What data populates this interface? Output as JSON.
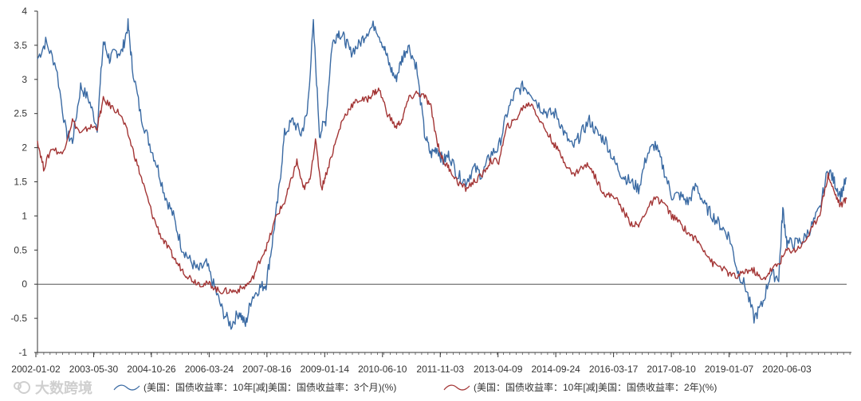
{
  "chart_data": {
    "type": "line",
    "title": "",
    "xlabel": "",
    "ylabel": "",
    "ylim": [
      -1,
      4
    ],
    "yticks": [
      "4",
      "3.5",
      "3",
      "2.5",
      "2",
      "1.5",
      "1",
      "0.5",
      "0",
      "-0.5",
      "-1"
    ],
    "xticks": [
      "2002-01-02",
      "2003-05-30",
      "2004-10-26",
      "2006-03-24",
      "2007-08-16",
      "2009-01-14",
      "2010-06-10",
      "2011-11-03",
      "2013-04-09",
      "2014-09-24",
      "2016-03-17",
      "2017-08-10",
      "2019-01-07",
      "2020-06-03"
    ],
    "grid": false,
    "zero_line": true,
    "x_range_years": [
      2002.0,
      2021.65
    ],
    "legend_position": "bottom",
    "series": [
      {
        "name": "(美国：国债收益率：10年[减]美国：国债收益率：3个月)(%)",
        "color": "#3a6aa3",
        "x": [
          2002.0,
          2002.2,
          2002.45,
          2002.7,
          2002.85,
          2003.05,
          2003.25,
          2003.45,
          2003.6,
          2003.75,
          2003.9,
          2004.05,
          2004.2,
          2004.3,
          2004.5,
          2004.7,
          2004.9,
          2005.1,
          2005.3,
          2005.5,
          2005.7,
          2005.9,
          2006.1,
          2006.3,
          2006.5,
          2006.7,
          2006.9,
          2007.05,
          2007.2,
          2007.4,
          2007.55,
          2007.7,
          2007.85,
          2008.0,
          2008.2,
          2008.4,
          2008.55,
          2008.7,
          2008.85,
          2009.0,
          2009.15,
          2009.3,
          2009.45,
          2009.6,
          2009.8,
          2010.0,
          2010.2,
          2010.4,
          2010.55,
          2010.7,
          2010.85,
          2011.0,
          2011.2,
          2011.4,
          2011.55,
          2011.7,
          2011.85,
          2012.0,
          2012.2,
          2012.4,
          2012.6,
          2012.8,
          2013.0,
          2013.2,
          2013.4,
          2013.6,
          2013.8,
          2014.0,
          2014.2,
          2014.4,
          2014.6,
          2014.8,
          2015.0,
          2015.2,
          2015.4,
          2015.6,
          2015.8,
          2016.0,
          2016.2,
          2016.4,
          2016.6,
          2016.8,
          2017.0,
          2017.2,
          2017.4,
          2017.6,
          2017.8,
          2018.0,
          2018.2,
          2018.4,
          2018.6,
          2018.8,
          2019.0,
          2019.2,
          2019.4,
          2019.6,
          2019.8,
          2020.0,
          2020.1,
          2020.2,
          2020.4,
          2020.6,
          2020.8,
          2021.0,
          2021.2,
          2021.35,
          2021.5,
          2021.65
        ],
        "values": [
          3.3,
          3.55,
          3.2,
          2.2,
          2.1,
          2.9,
          2.7,
          2.3,
          3.55,
          3.3,
          3.4,
          3.4,
          3.8,
          3.2,
          2.5,
          2.1,
          1.75,
          1.3,
          1.0,
          0.55,
          0.35,
          0.2,
          0.3,
          -0.05,
          -0.4,
          -0.6,
          -0.4,
          -0.6,
          -0.2,
          -0.05,
          0.0,
          0.6,
          1.3,
          2.2,
          2.4,
          2.2,
          2.5,
          3.8,
          2.2,
          2.4,
          3.5,
          3.7,
          3.6,
          3.4,
          3.5,
          3.7,
          3.8,
          3.5,
          3.2,
          3.0,
          3.3,
          3.5,
          3.2,
          2.2,
          1.9,
          2.0,
          1.8,
          1.9,
          1.6,
          1.5,
          1.7,
          1.6,
          1.9,
          2.0,
          2.5,
          2.8,
          2.9,
          2.8,
          2.6,
          2.5,
          2.5,
          2.2,
          2.0,
          2.2,
          2.4,
          2.2,
          2.1,
          1.8,
          1.6,
          1.5,
          1.4,
          1.9,
          2.05,
          1.7,
          1.3,
          1.3,
          1.2,
          1.45,
          1.15,
          1.0,
          0.85,
          0.7,
          0.2,
          -0.05,
          -0.5,
          -0.3,
          0.15,
          0.1,
          1.1,
          0.6,
          0.6,
          0.65,
          0.85,
          1.1,
          1.7,
          1.5,
          1.3,
          1.55
        ]
      },
      {
        "name": "(美国：国债收益率：10年[减]美国：国债收益率：2年)(%)",
        "color": "#a33535",
        "x": [
          2002.0,
          2002.15,
          2002.35,
          2002.6,
          2002.85,
          2003.05,
          2003.25,
          2003.45,
          2003.6,
          2003.8,
          2004.0,
          2004.2,
          2004.4,
          2004.6,
          2004.8,
          2005.0,
          2005.2,
          2005.4,
          2005.6,
          2005.8,
          2006.0,
          2006.2,
          2006.4,
          2006.6,
          2006.8,
          2007.0,
          2007.2,
          2007.4,
          2007.6,
          2007.8,
          2008.0,
          2008.15,
          2008.3,
          2008.45,
          2008.6,
          2008.75,
          2008.9,
          2009.0,
          2009.2,
          2009.4,
          2009.6,
          2009.8,
          2010.0,
          2010.15,
          2010.3,
          2010.5,
          2010.7,
          2010.85,
          2011.0,
          2011.2,
          2011.4,
          2011.55,
          2011.7,
          2011.85,
          2012.0,
          2012.2,
          2012.4,
          2012.6,
          2012.8,
          2013.0,
          2013.2,
          2013.4,
          2013.6,
          2013.8,
          2014.0,
          2014.2,
          2014.4,
          2014.6,
          2014.8,
          2015.0,
          2015.2,
          2015.4,
          2015.6,
          2015.8,
          2016.0,
          2016.2,
          2016.4,
          2016.6,
          2016.8,
          2017.0,
          2017.2,
          2017.4,
          2017.6,
          2017.8,
          2018.0,
          2018.2,
          2018.4,
          2018.6,
          2018.8,
          2019.0,
          2019.2,
          2019.4,
          2019.6,
          2019.8,
          2020.0,
          2020.2,
          2020.4,
          2020.6,
          2020.8,
          2021.0,
          2021.2,
          2021.35,
          2021.5,
          2021.65
        ],
        "values": [
          2.1,
          1.7,
          2.0,
          1.9,
          2.4,
          2.2,
          2.3,
          2.3,
          2.7,
          2.6,
          2.5,
          2.2,
          1.8,
          1.4,
          1.0,
          0.7,
          0.5,
          0.3,
          0.15,
          0.05,
          0.0,
          0.0,
          -0.1,
          -0.1,
          -0.1,
          -0.05,
          0.05,
          0.35,
          0.6,
          1.0,
          1.2,
          1.5,
          1.8,
          1.4,
          1.5,
          2.1,
          1.4,
          1.6,
          2.0,
          2.4,
          2.6,
          2.7,
          2.7,
          2.8,
          2.85,
          2.5,
          2.3,
          2.4,
          2.7,
          2.8,
          2.75,
          2.6,
          2.1,
          1.8,
          1.7,
          1.5,
          1.4,
          1.5,
          1.6,
          1.8,
          1.8,
          2.3,
          2.4,
          2.6,
          2.65,
          2.4,
          2.2,
          2.0,
          1.8,
          1.6,
          1.7,
          1.75,
          1.5,
          1.3,
          1.3,
          1.1,
          0.9,
          0.85,
          1.1,
          1.25,
          1.2,
          1.0,
          0.9,
          0.75,
          0.65,
          0.5,
          0.3,
          0.25,
          0.15,
          0.1,
          0.2,
          0.2,
          0.05,
          0.2,
          0.3,
          0.5,
          0.5,
          0.6,
          0.8,
          1.05,
          1.6,
          1.35,
          1.15,
          1.25
        ]
      }
    ]
  },
  "watermark": {
    "text": "大数跨境"
  }
}
